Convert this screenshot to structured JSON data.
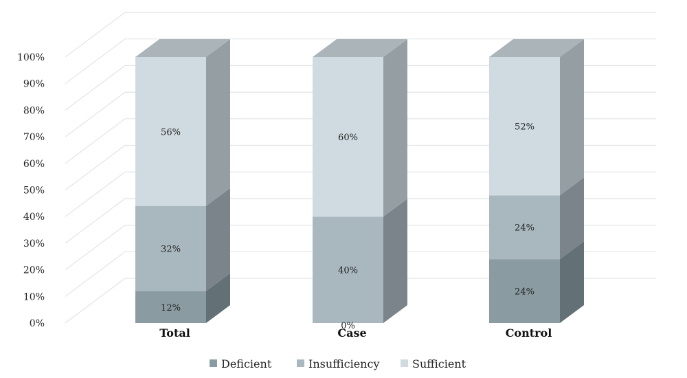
{
  "chart_data": {
    "type": "bar",
    "stacked": true,
    "three_d": true,
    "categories": [
      "Total",
      "Case",
      "Control"
    ],
    "series": [
      {
        "name": "Deficient",
        "values": [
          12,
          0,
          24
        ],
        "labels": [
          "12%",
          "0%",
          "24%"
        ],
        "color": "#8a9ca2"
      },
      {
        "name": "Insufficiency",
        "values": [
          32,
          40,
          24
        ],
        "labels": [
          "32%",
          "40%",
          "24%"
        ],
        "color": "#a9b8bf"
      },
      {
        "name": "Sufficient",
        "values": [
          56,
          60,
          52
        ],
        "labels": [
          "56%",
          "60%",
          "52%"
        ],
        "color": "#cfdbe1"
      }
    ],
    "y_ticks": [
      "0%",
      "10%",
      "20%",
      "30%",
      "40%",
      "50%",
      "60%",
      "70%",
      "80%",
      "90%",
      "100%"
    ],
    "ylim": [
      0,
      100
    ],
    "grid": true,
    "legend_position": "bottom",
    "title": "",
    "xlabel": "",
    "ylabel": ""
  }
}
